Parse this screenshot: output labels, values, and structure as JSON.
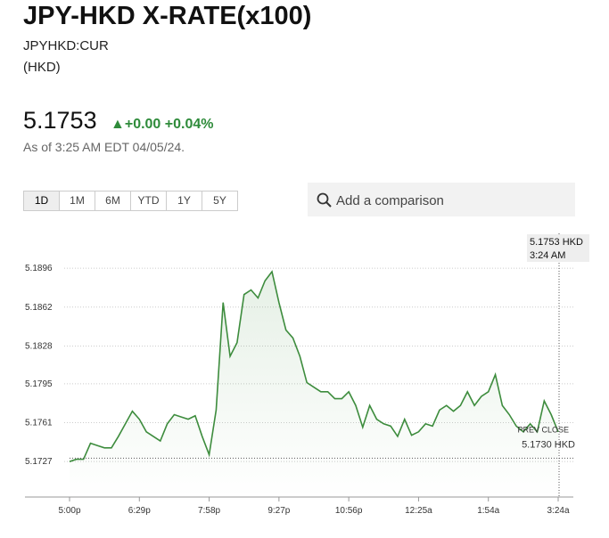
{
  "header": {
    "title": "JPY-HKD X-RATE(x100)",
    "ticker": "JPYHKD:CUR",
    "currency": "(HKD)",
    "price": "5.1753",
    "change": "+0.00",
    "change_pct": "+0.04%",
    "as_of": "As of 3:25 AM EDT 04/05/24."
  },
  "tabs": [
    "1D",
    "1M",
    "6M",
    "YTD",
    "1Y",
    "5Y"
  ],
  "search_placeholder": "Add a comparison",
  "chart_data": {
    "type": "line",
    "color": "#3d8c3d",
    "categories": [
      "5:00p",
      null,
      null,
      null,
      null,
      null,
      null,
      null,
      null,
      null,
      "6:29p",
      null,
      null,
      null,
      null,
      null,
      null,
      null,
      null,
      null,
      "7:58p",
      null,
      null,
      null,
      null,
      null,
      null,
      null,
      null,
      null,
      "9:27p",
      null,
      null,
      null,
      null,
      null,
      null,
      null,
      null,
      null,
      "10:56p",
      null,
      null,
      null,
      null,
      null,
      null,
      null,
      null,
      null,
      "12:25a",
      null,
      null,
      null,
      null,
      null,
      null,
      null,
      null,
      null,
      "1:54a",
      null,
      null,
      null,
      null,
      null,
      null,
      null,
      null,
      null,
      "3:24a"
    ],
    "values": [
      5.1727,
      5.1729,
      5.1729,
      5.1743,
      5.1741,
      5.1739,
      5.1739,
      5.1749,
      5.176,
      5.1771,
      5.1764,
      5.1753,
      5.1749,
      5.1745,
      5.176,
      5.1768,
      5.1766,
      5.1764,
      5.1767,
      5.1749,
      5.1733,
      5.1772,
      5.1866,
      5.1819,
      5.1831,
      5.1873,
      5.1877,
      5.187,
      5.1885,
      5.1893,
      5.1866,
      5.1842,
      5.1835,
      5.1819,
      5.1796,
      5.1792,
      5.1788,
      5.1788,
      5.1782,
      5.1782,
      5.1788,
      5.1776,
      5.1757,
      5.1776,
      5.1764,
      5.176,
      5.1758,
      5.1749,
      5.1764,
      5.175,
      5.1753,
      5.176,
      5.1758,
      5.1772,
      5.1776,
      5.1771,
      5.1776,
      5.1788,
      5.1776,
      5.1784,
      5.1788,
      5.1803,
      5.1776,
      5.1768,
      5.1758,
      5.1753,
      5.176,
      5.1753,
      5.178,
      5.1768,
      5.1753
    ],
    "ylim": [
      5.1696,
      5.1928
    ],
    "yticks": [
      5.1727,
      5.1761,
      5.1795,
      5.1828,
      5.1862,
      5.1896
    ],
    "grid": true,
    "reference_line": {
      "name": "PREV CLOSE",
      "value": 5.173,
      "value_label": "5.1730 HKD"
    },
    "tooltip": {
      "value_label": "5.1753 HKD",
      "time": "3:24 AM"
    }
  }
}
